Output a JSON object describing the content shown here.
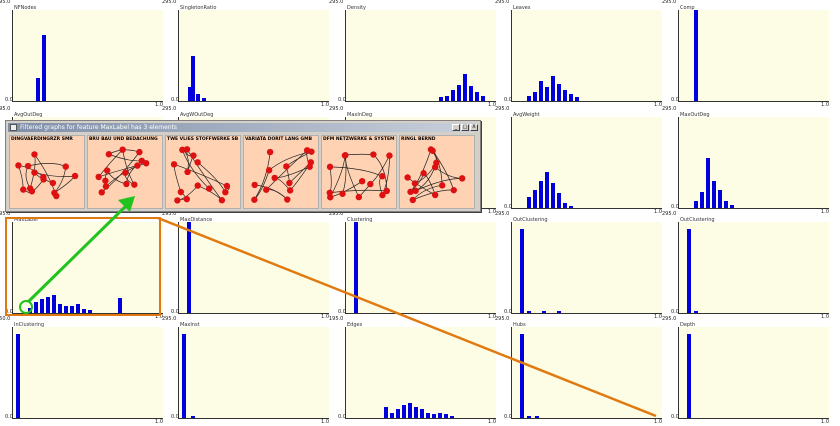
{
  "popup": {
    "title": "Filtered graphs for feature MaxLabel has 3 elements",
    "buttons": [
      "_",
      "□",
      "X"
    ],
    "thumbnails": [
      "DINGVAERDINGRZR SMR",
      "BRU BAU UND BEDACHUNG",
      "TWE VLIES STOFFWERKE SB",
      "VARIATA DORIT LANG GMB",
      "DFM NETZWERKE & SYSTEM",
      "RINGL BERND"
    ]
  },
  "panels": [
    {
      "title": "NFNodes",
      "ymax": "195.0",
      "xmin": "0.0",
      "xmax": "1.0",
      "bars": [
        [
          0.15,
          0.25
        ],
        [
          0.19,
          0.72
        ]
      ]
    },
    {
      "title": "SingletonRatio",
      "ymax": "295.0",
      "xmin": "0.0",
      "xmax": "1.0",
      "bars": [
        [
          0.06,
          0.15
        ],
        [
          0.08,
          0.5
        ],
        [
          0.11,
          0.08
        ],
        [
          0.15,
          0.03
        ]
      ]
    },
    {
      "title": "Density",
      "ymax": "295.0",
      "xmin": "0.0",
      "xmax": "1.0",
      "bars": [
        [
          0.62,
          0.04
        ],
        [
          0.66,
          0.06
        ],
        [
          0.7,
          0.12
        ],
        [
          0.74,
          0.18
        ],
        [
          0.78,
          0.3
        ],
        [
          0.82,
          0.16
        ],
        [
          0.86,
          0.1
        ],
        [
          0.9,
          0.05
        ]
      ]
    },
    {
      "title": "Leaves",
      "ymax": "295.0",
      "xmin": "0.0",
      "xmax": "1.0",
      "bars": [
        [
          0.1,
          0.05
        ],
        [
          0.14,
          0.1
        ],
        [
          0.18,
          0.22
        ],
        [
          0.22,
          0.15
        ],
        [
          0.26,
          0.28
        ],
        [
          0.3,
          0.19
        ],
        [
          0.34,
          0.12
        ],
        [
          0.38,
          0.08
        ],
        [
          0.42,
          0.04
        ]
      ]
    },
    {
      "title": "Comp",
      "ymax": "295.0",
      "xmin": "0.0",
      "xmax": "1.0",
      "bars": [
        [
          0.1,
          1.0
        ]
      ]
    },
    {
      "title": "AvgOutDeg",
      "ymax": "195.0",
      "xmin": "0.0",
      "xmax": "1.0",
      "bars": []
    },
    {
      "title": "AvgWOutDeg",
      "ymax": "295.0",
      "xmin": "0.0",
      "xmax": "1.0",
      "bars": []
    },
    {
      "title": "MaxInDeg",
      "ymax": "295.0",
      "xmin": "0.0",
      "xmax": "1.0",
      "bars": []
    },
    {
      "title": "AvgWeight",
      "ymax": "295.0",
      "xmin": "0.0",
      "xmax": "1.0",
      "bars": [
        [
          0.1,
          0.12
        ],
        [
          0.14,
          0.2
        ],
        [
          0.18,
          0.3
        ],
        [
          0.22,
          0.4
        ],
        [
          0.26,
          0.28
        ],
        [
          0.3,
          0.16
        ],
        [
          0.34,
          0.06
        ],
        [
          0.38,
          0.02
        ]
      ]
    },
    {
      "title": "MaxOutDeg",
      "ymax": "295.0",
      "xmin": "0.0",
      "xmax": "1.0",
      "bars": [
        [
          0.1,
          0.08
        ],
        [
          0.14,
          0.18
        ],
        [
          0.18,
          0.55
        ],
        [
          0.22,
          0.3
        ],
        [
          0.26,
          0.2
        ],
        [
          0.3,
          0.08
        ],
        [
          0.34,
          0.03
        ]
      ]
    },
    {
      "title": "MaxLabel",
      "ymax": "195.0",
      "xmin": "0.0",
      "xmax": "1.0",
      "bars": [
        [
          0.1,
          0.06
        ],
        [
          0.14,
          0.12
        ],
        [
          0.18,
          0.15
        ],
        [
          0.22,
          0.18
        ],
        [
          0.26,
          0.2
        ],
        [
          0.3,
          0.1
        ],
        [
          0.34,
          0.08
        ],
        [
          0.38,
          0.08
        ],
        [
          0.42,
          0.1
        ],
        [
          0.46,
          0.04
        ],
        [
          0.5,
          0.03
        ],
        [
          0.7,
          0.16
        ]
      ]
    },
    {
      "title": "MaxDistance",
      "ymax": "295.0",
      "xmin": "0.0",
      "xmax": "1.0",
      "bars": [
        [
          0.05,
          1.0
        ]
      ]
    },
    {
      "title": "Clustering",
      "ymax": "295.0",
      "xmin": "0.0",
      "xmax": "1.0",
      "bars": [
        [
          0.05,
          1.0
        ]
      ]
    },
    {
      "title": "OutClustering",
      "ymax": "295.0",
      "xmin": "0.0",
      "xmax": "1.0",
      "bars": [
        [
          0.05,
          0.92
        ],
        [
          0.1,
          0.02
        ],
        [
          0.2,
          0.02
        ],
        [
          0.3,
          0.02
        ]
      ]
    },
    {
      "title": "OutClustering",
      "ymax": "295.0",
      "xmin": "0.0",
      "xmax": "1.0",
      "bars": [
        [
          0.05,
          0.92
        ],
        [
          0.1,
          0.02
        ]
      ]
    },
    {
      "title": "InClustering",
      "ymax": "150.0",
      "xmin": "0.0",
      "xmax": "1.0",
      "bars": [
        [
          0.02,
          0.92
        ]
      ]
    },
    {
      "title": "MaxInst",
      "ymax": "295.0",
      "xmin": "0.0",
      "xmax": "1.0",
      "bars": [
        [
          0.02,
          0.92
        ],
        [
          0.08,
          0.02
        ]
      ]
    },
    {
      "title": "Edges",
      "ymax": "195.0",
      "xmin": "0.0",
      "xmax": "1.0",
      "bars": [
        [
          0.25,
          0.12
        ],
        [
          0.29,
          0.06
        ],
        [
          0.33,
          0.1
        ],
        [
          0.37,
          0.14
        ],
        [
          0.41,
          0.16
        ],
        [
          0.45,
          0.12
        ],
        [
          0.49,
          0.1
        ],
        [
          0.53,
          0.06
        ],
        [
          0.57,
          0.04
        ],
        [
          0.61,
          0.06
        ],
        [
          0.65,
          0.04
        ],
        [
          0.69,
          0.02
        ]
      ]
    },
    {
      "title": "Hubs",
      "ymax": "295.0",
      "xmin": "0.0",
      "xmax": "1.0",
      "bars": [
        [
          0.05,
          0.92
        ],
        [
          0.1,
          0.02
        ],
        [
          0.15,
          0.02
        ]
      ]
    },
    {
      "title": "Depth",
      "ymax": "295.0",
      "xmin": "0.0",
      "xmax": "1.0",
      "bars": [
        [
          0.05,
          0.92
        ]
      ]
    }
  ],
  "colors": {
    "bar": "#0000dd",
    "plot_bg": "#fdfde5",
    "highlight": "#e07a10",
    "arrow": "#22c21f",
    "node": "#dd1111"
  }
}
